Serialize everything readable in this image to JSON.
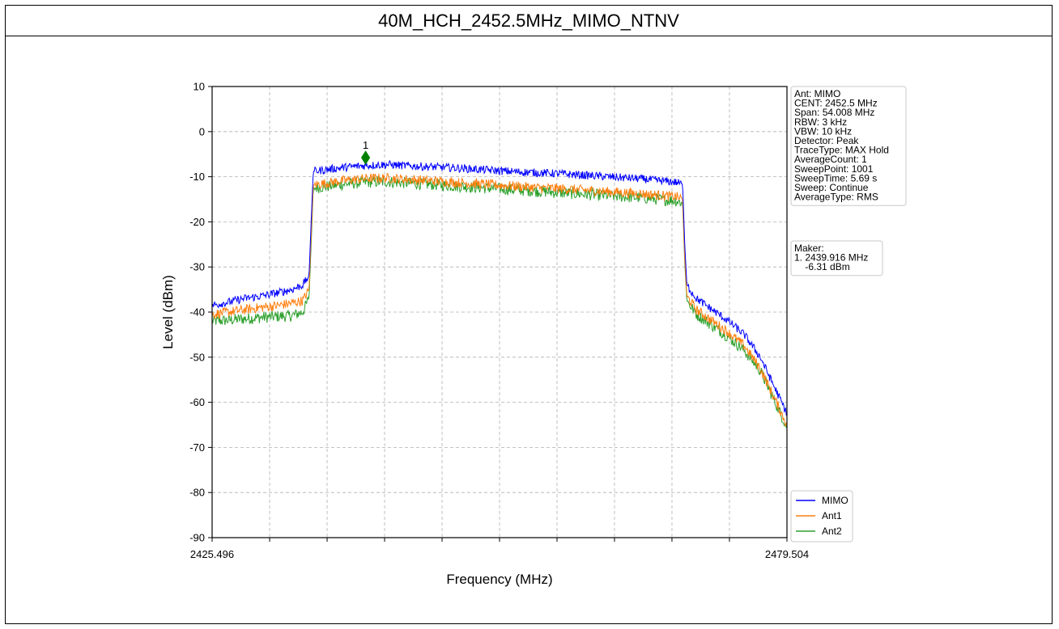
{
  "chart_data": {
    "type": "line",
    "title": "40M_HCH_2452.5MHz_MIMO_NTNV",
    "xlabel": "Frequency (MHz)",
    "ylabel": "Level (dBm)",
    "xlim": [
      2425.496,
      2479.504
    ],
    "ylim": [
      -90,
      10
    ],
    "x_tick_labels": [
      "2425.496",
      "2479.504"
    ],
    "y_ticks": [
      10,
      0,
      -10,
      -20,
      -30,
      -40,
      -50,
      -60,
      -70,
      -80,
      -90
    ],
    "x_minor_ticks": [
      2430.9,
      2436.3,
      2441.7,
      2447.1,
      2452.5,
      2457.9,
      2463.3,
      2468.7,
      2474.1
    ],
    "grid": true,
    "legend_position": "bottom-right",
    "series": [
      {
        "name": "MIMO",
        "color": "#0000ff",
        "x": [
          2425.5,
          2427.0,
          2428.5,
          2430.0,
          2431.5,
          2433.0,
          2434.0,
          2434.6,
          2434.8,
          2435.0,
          2436.0,
          2438.0,
          2440.0,
          2442.0,
          2444.0,
          2446.0,
          2448.0,
          2450.0,
          2452.0,
          2454.0,
          2456.0,
          2458.0,
          2460.0,
          2462.0,
          2464.0,
          2466.0,
          2469.0,
          2469.7,
          2469.9,
          2470.1,
          2471.0,
          2472.5,
          2474.0,
          2475.5,
          2477.0,
          2478.0,
          2479.5
        ],
        "values": [
          -38.5,
          -37.8,
          -37.0,
          -36.5,
          -35.8,
          -35.0,
          -34.0,
          -32.0,
          -20.0,
          -8.8,
          -8.5,
          -7.9,
          -7.5,
          -7.3,
          -7.6,
          -7.8,
          -8.0,
          -8.3,
          -8.6,
          -8.9,
          -9.1,
          -9.3,
          -9.6,
          -9.9,
          -10.2,
          -10.5,
          -11.2,
          -11.6,
          -25.0,
          -34.0,
          -37.0,
          -39.5,
          -42.0,
          -45.0,
          -50.0,
          -55.0,
          -62.5
        ]
      },
      {
        "name": "Ant1",
        "color": "#ff7f0e",
        "x": [
          2425.5,
          2427.0,
          2428.5,
          2430.0,
          2431.5,
          2433.0,
          2434.0,
          2434.6,
          2434.8,
          2435.0,
          2436.0,
          2438.0,
          2440.0,
          2442.0,
          2444.0,
          2446.0,
          2448.0,
          2450.0,
          2452.0,
          2454.0,
          2456.0,
          2458.0,
          2460.0,
          2462.0,
          2464.0,
          2466.0,
          2469.0,
          2469.7,
          2469.9,
          2470.1,
          2471.0,
          2472.5,
          2474.0,
          2475.5,
          2477.0,
          2478.0,
          2479.5
        ],
        "values": [
          -40.5,
          -40.0,
          -39.5,
          -39.0,
          -38.6,
          -38.0,
          -37.5,
          -35.0,
          -23.0,
          -11.8,
          -11.5,
          -10.8,
          -10.4,
          -10.3,
          -10.6,
          -10.9,
          -11.2,
          -11.5,
          -11.8,
          -12.1,
          -12.4,
          -12.6,
          -12.9,
          -13.2,
          -13.5,
          -13.8,
          -14.4,
          -14.8,
          -28.0,
          -36.5,
          -39.5,
          -42.0,
          -44.5,
          -47.5,
          -52.5,
          -57.5,
          -65.0
        ]
      },
      {
        "name": "Ant2",
        "color": "#2ca02c",
        "x": [
          2425.5,
          2427.0,
          2428.5,
          2430.0,
          2431.5,
          2433.0,
          2434.0,
          2434.6,
          2434.8,
          2435.0,
          2436.0,
          2438.0,
          2440.0,
          2442.0,
          2444.0,
          2446.0,
          2448.0,
          2450.0,
          2452.0,
          2454.0,
          2456.0,
          2458.0,
          2460.0,
          2462.0,
          2464.0,
          2466.0,
          2469.0,
          2469.7,
          2469.9,
          2470.1,
          2471.0,
          2472.5,
          2474.0,
          2475.5,
          2477.0,
          2478.0,
          2479.5
        ],
        "values": [
          -42.0,
          -41.8,
          -41.5,
          -41.2,
          -41.0,
          -40.8,
          -40.0,
          -37.0,
          -25.0,
          -12.5,
          -12.2,
          -11.6,
          -11.2,
          -11.1,
          -11.4,
          -11.7,
          -12.0,
          -12.3,
          -12.6,
          -12.9,
          -13.2,
          -13.5,
          -13.8,
          -14.1,
          -14.4,
          -14.7,
          -15.3,
          -15.7,
          -29.0,
          -37.5,
          -40.5,
          -43.0,
          -45.5,
          -48.5,
          -53.0,
          -58.0,
          -65.5
        ]
      }
    ],
    "marker": {
      "number": "1",
      "x": 2439.916,
      "y": -6.31,
      "color": "#008000"
    },
    "info_box": [
      "Ant: MIMO",
      "CENT: 2452.5 MHz",
      "Span: 54.008 MHz",
      "RBW: 3 kHz",
      "VBW: 10 kHz",
      "Detector: Peak",
      "TraceType: MAX Hold",
      "AverageCount: 1",
      "SweepPoint: 1001",
      "SweepTime: 5.69 s",
      "Sweep: Continue",
      "AverageType: RMS"
    ],
    "marker_box": [
      "Maker:",
      "1. 2439.916 MHz",
      "    -6.31 dBm"
    ]
  }
}
